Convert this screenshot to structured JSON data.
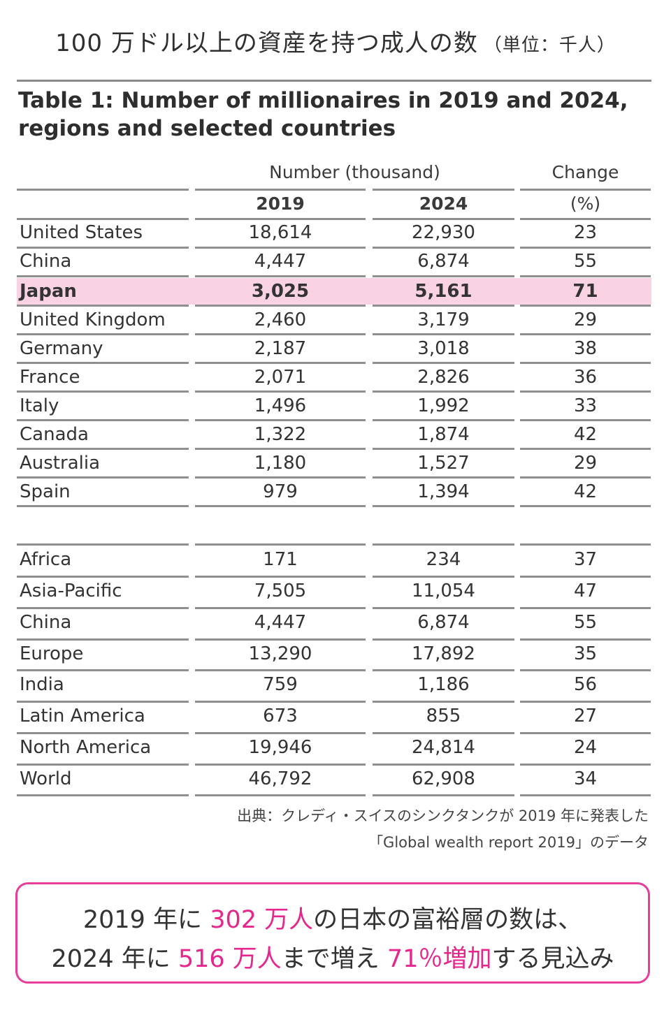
{
  "page": {
    "jp_title": "100 万ドル以上の資産を持つ成人の数",
    "jp_unit": "（単位：千人）",
    "table_title_line1": "Table 1: Number of millionaires in 2019 and 2024,",
    "table_title_line2": "regions and selected countries"
  },
  "table": {
    "group_header_number": "Number (thousand)",
    "group_header_change": "Change",
    "col_2019": "2019",
    "col_2024": "2024",
    "col_change_unit": "(%)",
    "countries": [
      {
        "name": "United States",
        "v2019": "18,614",
        "v2024": "22,930",
        "change": "23"
      },
      {
        "name": "China",
        "v2019": "4,447",
        "v2024": "6,874",
        "change": "55"
      },
      {
        "name": "Japan",
        "v2019": "3,025",
        "v2024": "5,161",
        "change": "71"
      },
      {
        "name": "United Kingdom",
        "v2019": "2,460",
        "v2024": "3,179",
        "change": "29"
      },
      {
        "name": "Germany",
        "v2019": "2,187",
        "v2024": "3,018",
        "change": "38"
      },
      {
        "name": "France",
        "v2019": "2,071",
        "v2024": "2,826",
        "change": "36"
      },
      {
        "name": "Italy",
        "v2019": "1,496",
        "v2024": "1,992",
        "change": "33"
      },
      {
        "name": "Canada",
        "v2019": "1,322",
        "v2024": "1,874",
        "change": "42"
      },
      {
        "name": "Australia",
        "v2019": "1,180",
        "v2024": "1,527",
        "change": "29"
      },
      {
        "name": "Spain",
        "v2019": "979",
        "v2024": "1,394",
        "change": "42"
      }
    ],
    "regions": [
      {
        "name": "Africa",
        "v2019": "171",
        "v2024": "234",
        "change": "37"
      },
      {
        "name": "Asia-Pacific",
        "v2019": "7,505",
        "v2024": "11,054",
        "change": "47"
      },
      {
        "name": "China",
        "v2019": "4,447",
        "v2024": "6,874",
        "change": "55"
      },
      {
        "name": "Europe",
        "v2019": "13,290",
        "v2024": "17,892",
        "change": "35"
      },
      {
        "name": "India",
        "v2019": "759",
        "v2024": "1,186",
        "change": "56"
      },
      {
        "name": "Latin America",
        "v2019": "673",
        "v2024": "855",
        "change": "27"
      },
      {
        "name": "North America",
        "v2019": "19,946",
        "v2024": "24,814",
        "change": "24"
      },
      {
        "name": "World",
        "v2019": "46,792",
        "v2024": "62,908",
        "change": "34"
      }
    ],
    "highlight_color": "#f9d3e3"
  },
  "source": {
    "line1": "出典：クレディ・スイスのシンクタンクが 2019 年に発表した",
    "line2": "「Global wealth report 2019」のデータ"
  },
  "callout": {
    "border_color": "#e83e9b",
    "accent_color": "#e6268d",
    "l1_a": "2019 年に ",
    "l1_b": "302 万人",
    "l1_c": "の日本の富裕層の数は、",
    "l2_a": "2024 年に ",
    "l2_b": "516 万人",
    "l2_c": "まで増え ",
    "l2_d": "71％増加",
    "l2_e": "する見込み"
  }
}
